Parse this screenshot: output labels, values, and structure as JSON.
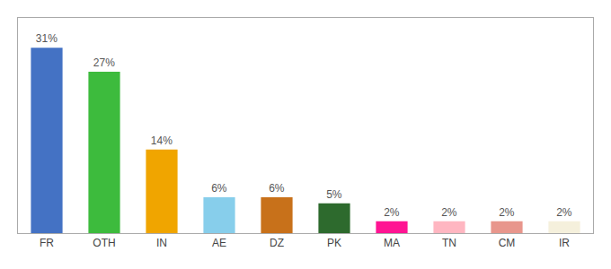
{
  "chart_data": {
    "type": "bar",
    "categories": [
      "FR",
      "OTH",
      "IN",
      "AE",
      "DZ",
      "PK",
      "MA",
      "TN",
      "CM",
      "IR"
    ],
    "values": [
      31,
      27,
      14,
      6,
      6,
      5,
      2,
      2,
      2,
      2
    ],
    "value_labels": [
      "31%",
      "27%",
      "14%",
      "6%",
      "6%",
      "5%",
      "2%",
      "2%",
      "2%",
      "2%"
    ],
    "colors": [
      "#4472c4",
      "#3dbb3d",
      "#f0a500",
      "#87ceeb",
      "#c8711a",
      "#2d6a2d",
      "#ff1493",
      "#ffb6c1",
      "#e8968c",
      "#f5f0dc"
    ],
    "ylim": [
      0,
      36
    ],
    "data_labels": true,
    "tick_labels": "x",
    "grid": false
  }
}
